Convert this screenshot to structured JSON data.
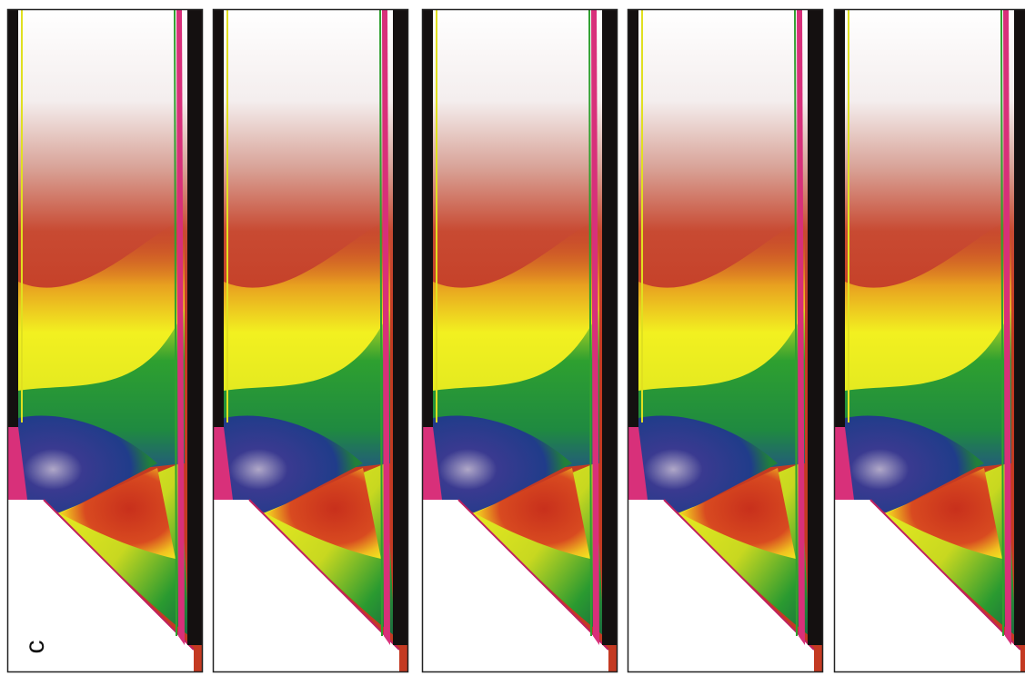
{
  "figure": {
    "label": "c"
  }
}
